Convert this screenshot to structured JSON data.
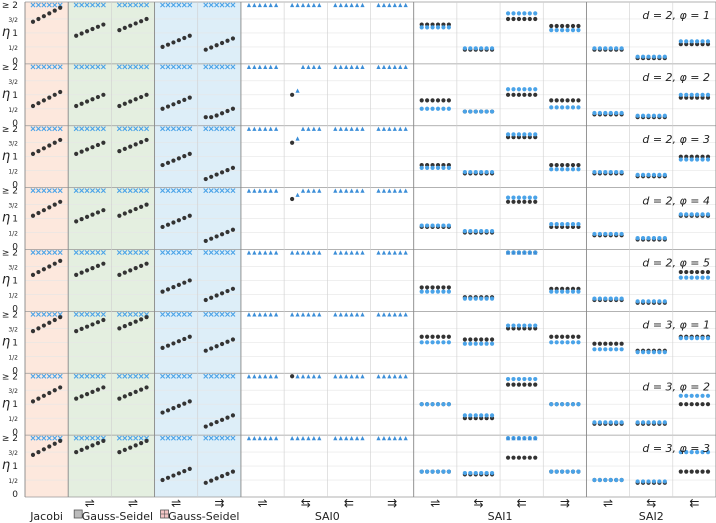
{
  "chart_data": {
    "type": "scatter",
    "y_axis": {
      "label": "η",
      "ticks": [
        "≥ 2",
        "3/2",
        "1",
        "1/2",
        "0"
      ],
      "ylim": [
        0,
        2
      ]
    },
    "group_labels": {
      "jacobi": "Jacobi",
      "gs1": "Gauss-Seidel",
      "gs2": "Gauss-Seidel",
      "sai0": "SAI0",
      "sai1": "SAI1",
      "sai2": "SAI2"
    },
    "column_arrows": [
      "⇌",
      "⇌",
      "⇌",
      "⇌",
      "⇉",
      "⇌",
      "⇆",
      "⇇",
      "⇉",
      "⇌",
      "⇆",
      "⇇",
      "⇉",
      "⇌",
      "⇆",
      "⇇"
    ],
    "column_arrow_visible": [
      false,
      true,
      true,
      true,
      true,
      true,
      true,
      true,
      true,
      true,
      true,
      true,
      true,
      true,
      true,
      true
    ],
    "column_shading": [
      "#fde8dd",
      "#e4efe0",
      "#e4efe0",
      "#ddeef8",
      "#ddeef8",
      "none",
      "none",
      "none",
      "none",
      "none",
      "none",
      "none",
      "none",
      "none",
      "none",
      "none"
    ],
    "rows": [
      {
        "label": "d = 2,  φ = 1",
        "levels": {
          "b": [
            1.9,
            1.3,
            1.5,
            0.9,
            0.8,
            9,
            9,
            9,
            9,
            1.3,
            0.4,
            1.5,
            1.25,
            0.4,
            0.1,
            0.6,
            0.3
          ],
          "l": [
            2.1,
            2.1,
            2.1,
            2.1,
            2.1,
            2.1,
            2.1,
            2.1,
            2.1,
            1.2,
            0.45,
            1.7,
            1.1,
            0.45,
            0.15,
            0.7,
            0.35
          ]
        }
      },
      {
        "label": "d = 2,  φ = 2",
        "levels": {
          "b": [
            1.1,
            1.0,
            1.0,
            0.9,
            0.5,
            9,
            1.0,
            9,
            9,
            0.8,
            0.4,
            1.0,
            0.8,
            0.3,
            0.2,
            0.9,
            0.25
          ],
          "l": [
            2.1,
            2.1,
            2.1,
            2.1,
            2.1,
            2.1,
            1.0,
            2.1,
            2.1,
            0.5,
            0.4,
            1.2,
            0.55,
            0.35,
            0.25,
            1.0,
            0.3
          ]
        }
      },
      {
        "label": "d = 2,  φ = 3",
        "levels": {
          "b": [
            1.6,
            1.5,
            1.6,
            1.1,
            0.6,
            9,
            1.5,
            9,
            9,
            0.7,
            0.4,
            1.7,
            0.7,
            0.4,
            0.3,
            1.0,
            0.3
          ],
          "l": [
            2.1,
            2.1,
            2.1,
            2.1,
            2.1,
            2.1,
            2.1,
            2.1,
            2.1,
            0.6,
            0.45,
            1.8,
            0.55,
            0.45,
            0.35,
            0.9,
            0.35
          ]
        }
      },
      {
        "label": "d = 2,  φ = 4",
        "levels": {
          "b": [
            1.6,
            1.3,
            1.5,
            1.1,
            0.6,
            9,
            1.7,
            9,
            9,
            0.7,
            0.5,
            1.6,
            0.7,
            0.4,
            0.25,
            1.1,
            0.4
          ],
          "l": [
            2.1,
            2.1,
            2.1,
            2.1,
            2.1,
            2.1,
            2.1,
            2.1,
            2.1,
            0.75,
            0.55,
            1.75,
            0.8,
            0.45,
            0.3,
            1.15,
            0.45
          ]
        }
      },
      {
        "label": "d = 2,  φ = 5",
        "levels": {
          "b": [
            1.7,
            1.6,
            1.6,
            1.0,
            0.7,
            9,
            9,
            9,
            9,
            0.75,
            0.4,
            2.1,
            0.7,
            0.3,
            0.2,
            1.3,
            0.35
          ],
          "l": [
            2.1,
            2.1,
            2.1,
            2.1,
            2.1,
            2.1,
            2.1,
            2.1,
            2.1,
            0.6,
            0.35,
            2.1,
            0.6,
            0.35,
            0.25,
            1.1,
            0.4
          ]
        }
      },
      {
        "label": "d = 3,  φ = 1",
        "levels": {
          "b": [
            1.9,
            1.8,
            1.9,
            1.2,
            1.1,
            9,
            9,
            9,
            9,
            1.2,
            1.1,
            1.5,
            1.2,
            0.95,
            0.7,
            1.2,
            1.0
          ],
          "l": [
            2.1,
            2.1,
            2.1,
            2.1,
            2.1,
            2.1,
            2.1,
            2.1,
            2.1,
            1.0,
            0.95,
            1.6,
            1.0,
            0.75,
            0.65,
            1.15,
            0.75
          ]
        }
      },
      {
        "label": "d = 3,  φ = 2",
        "levels": {
          "b": [
            1.6,
            1.6,
            1.6,
            1.1,
            0.6,
            9,
            2.0,
            9,
            9,
            1.0,
            0.5,
            1.7,
            1.0,
            0.3,
            0.3,
            1.0,
            0.3
          ],
          "l": [
            2.1,
            2.1,
            2.1,
            2.1,
            2.1,
            2.1,
            2.1,
            2.1,
            2.1,
            1.0,
            0.6,
            1.9,
            1.0,
            0.35,
            0.35,
            1.3,
            0.35
          ]
        }
      },
      {
        "label": "d = 3,  φ = 3",
        "levels": {
          "b": [
            1.9,
            1.9,
            1.9,
            0.9,
            0.8,
            9,
            9,
            9,
            9,
            0.8,
            0.7,
            1.3,
            0.8,
            0.5,
            0.4,
            0.8,
            0.5
          ],
          "l": [
            2.1,
            2.1,
            2.1,
            2.1,
            2.1,
            2.1,
            2.1,
            2.1,
            2.1,
            0.8,
            0.75,
            2.1,
            0.8,
            0.5,
            0.45,
            1.5,
            0.5
          ]
        }
      }
    ],
    "series": [
      {
        "marker": "circle",
        "color": "#333333"
      },
      {
        "marker": "circle",
        "color": "#4aa3e8"
      },
      {
        "marker": "cross",
        "color": "#4aa3e8"
      },
      {
        "marker": "triangle",
        "color": "#3b8ed8"
      }
    ],
    "grid": true
  }
}
